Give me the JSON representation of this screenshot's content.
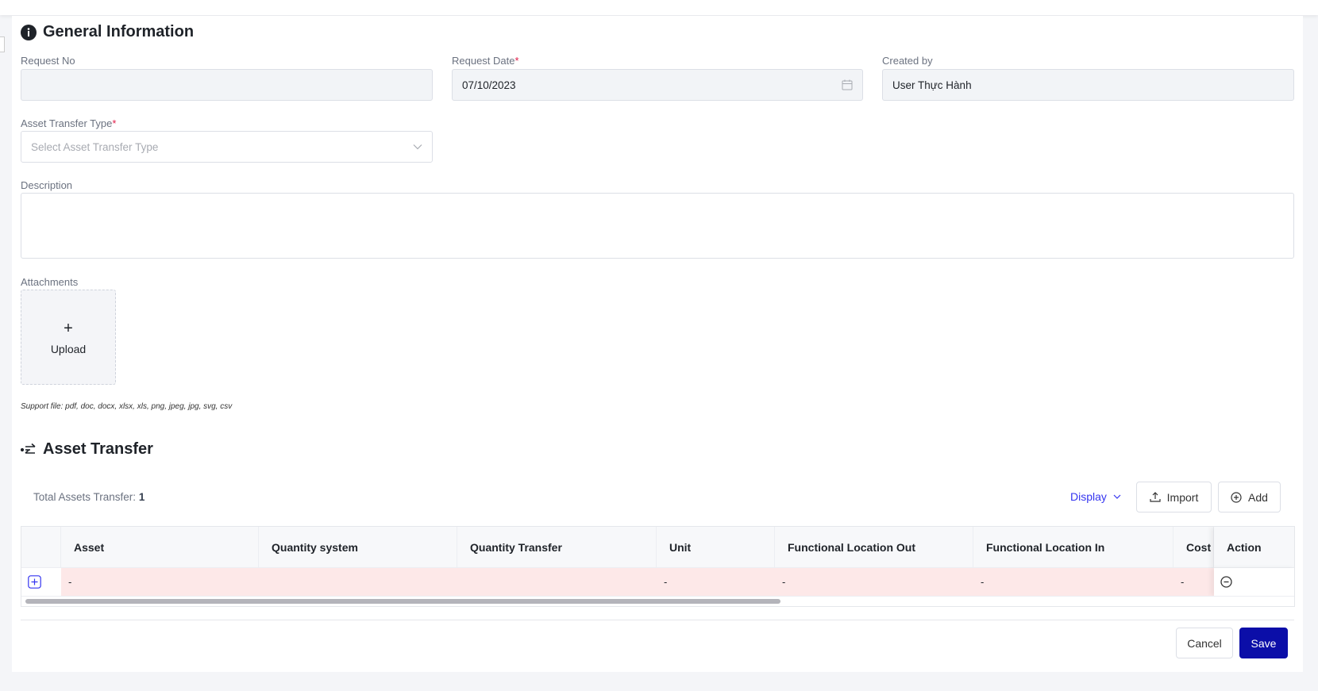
{
  "general": {
    "title": "General Information",
    "icon": "info-icon",
    "request_no": {
      "label": "Request No",
      "value": ""
    },
    "request_date": {
      "label": "Request Date",
      "required": "*",
      "value": "07/10/2023"
    },
    "created_by": {
      "label": "Created by",
      "value": "User Thực Hành"
    },
    "transfer_type": {
      "label": "Asset Transfer Type",
      "required": "*",
      "placeholder": "Select Asset Transfer Type"
    },
    "description": {
      "label": "Description",
      "value": ""
    },
    "attachments": {
      "label": "Attachments",
      "upload_label": "Upload",
      "support": "Support file: pdf, doc, docx, xlsx, xls, png, jpeg, jpg, svg, csv"
    }
  },
  "asset_transfer": {
    "title": "Asset Transfer",
    "icon": "transfer-icon",
    "total_label": "Total Assets Transfer:",
    "total_value": "1",
    "display_label": "Display",
    "import_label": "Import",
    "add_label": "Add",
    "columns": [
      "Asset",
      "Quantity system",
      "Quantity Transfer",
      "Unit",
      "Functional Location Out",
      "Functional Location In",
      "Cost C",
      "Action"
    ],
    "rows": [
      {
        "asset": "-",
        "quantity_system": "",
        "quantity_transfer": "",
        "unit": "-",
        "fl_out": "-",
        "fl_in": "-",
        "cost": "-"
      }
    ]
  },
  "footer": {
    "cancel_label": "Cancel",
    "save_label": "Save"
  },
  "colors": {
    "primary": "#0b0ea8",
    "link": "#3535f0",
    "row_error": "#fde8e8"
  }
}
